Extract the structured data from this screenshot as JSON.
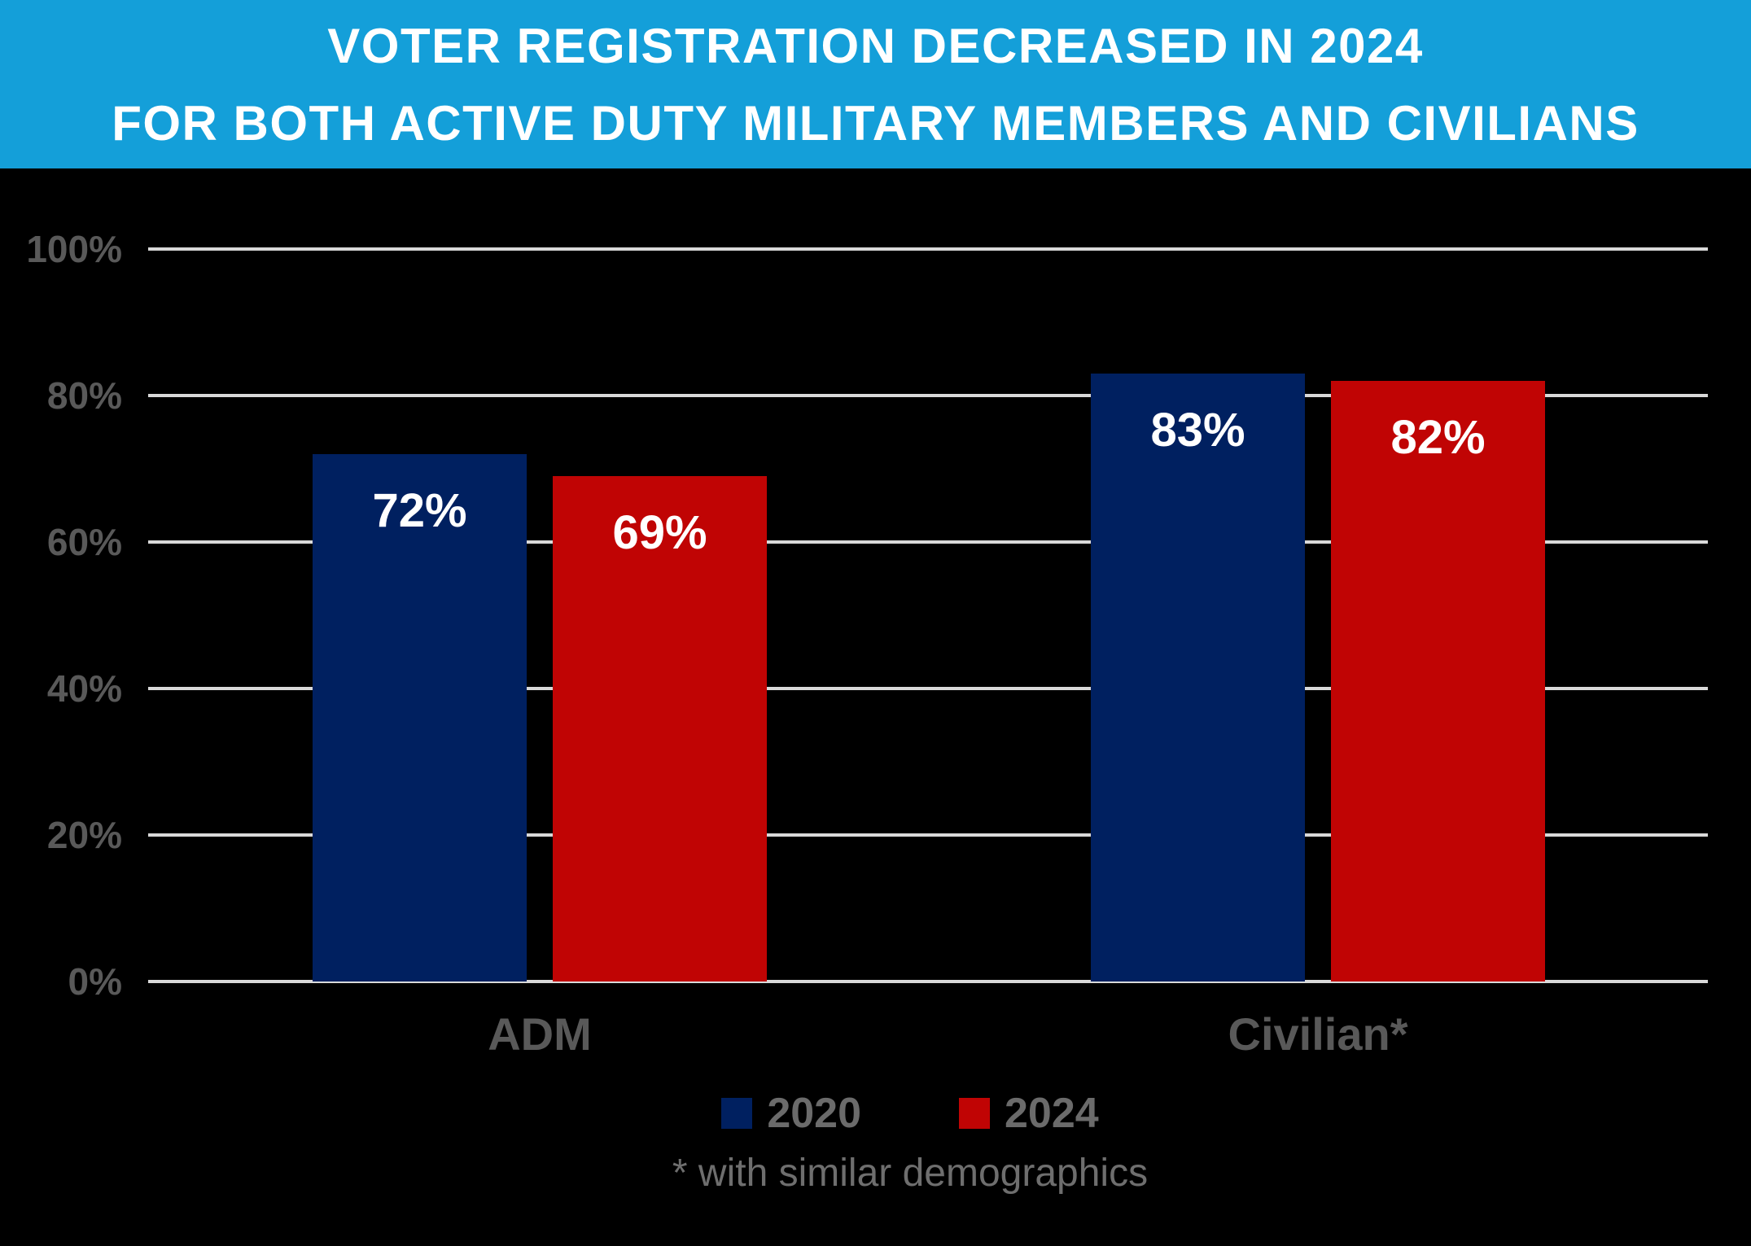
{
  "header": {
    "title_line1": "VOTER REGISTRATION DECREASED IN 2024",
    "title_line2": "FOR BOTH ACTIVE DUTY MILITARY MEMBERS AND CIVILIANS",
    "bg_color": "#149fd9",
    "text_color": "#ffffff"
  },
  "chart_data": {
    "type": "bar",
    "title": "VOTER REGISTRATION DECREASED IN 2024 FOR BOTH ACTIVE DUTY MILITARY MEMBERS AND CIVILIANS",
    "categories": [
      "ADM",
      "Civilian*"
    ],
    "series": [
      {
        "name": "2020",
        "color": "#002060",
        "values": [
          72,
          83
        ],
        "labels": [
          "72%",
          "83%"
        ]
      },
      {
        "name": "2024",
        "color": "#c00404",
        "values": [
          69,
          82
        ],
        "labels": [
          "69%",
          "82%"
        ]
      }
    ],
    "yticks": [
      {
        "label": "100%",
        "value": 100
      },
      {
        "label": "80%",
        "value": 80
      },
      {
        "label": "60%",
        "value": 60
      },
      {
        "label": "40%",
        "value": 40
      },
      {
        "label": "20%",
        "value": 20
      },
      {
        "label": "0%",
        "value": 0
      }
    ],
    "ylim": [
      0,
      100
    ],
    "grid": true,
    "legend_position": "bottom",
    "footnote": "* with similar demographics"
  }
}
